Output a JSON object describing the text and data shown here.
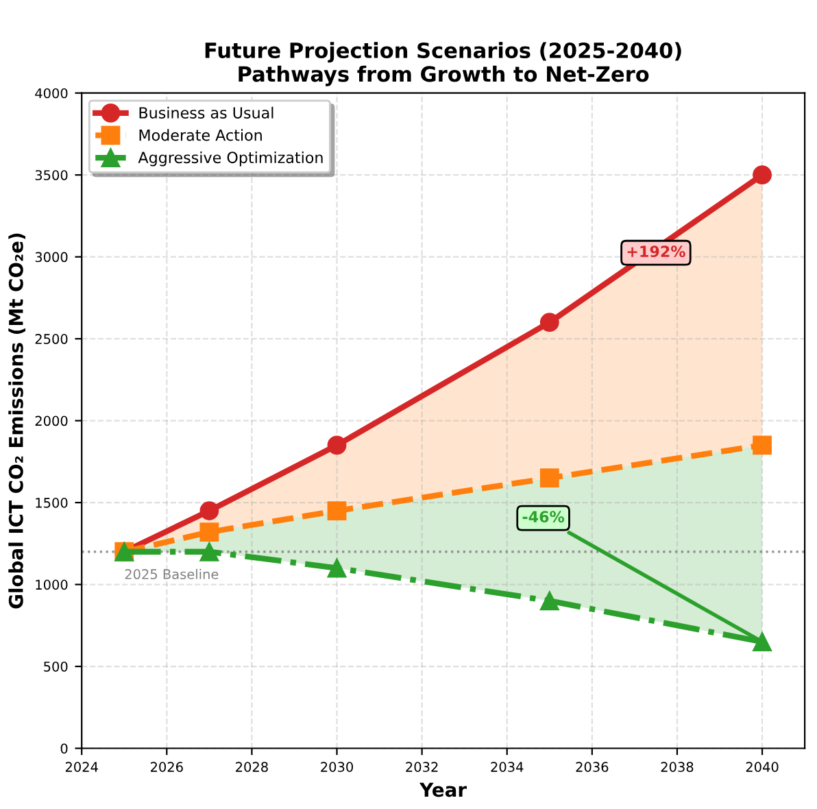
{
  "chart_data": {
    "type": "line",
    "title": "Future Projection Scenarios (2025-2040)",
    "subtitle": "Pathways from Growth to Net-Zero",
    "xlabel": "Year",
    "ylabel": "Global ICT CO₂ Emissions (Mt CO₂e)",
    "x": [
      2025,
      2027,
      2030,
      2035,
      2040
    ],
    "series": [
      {
        "name": "Business as Usual",
        "color": "#d62728",
        "marker": "circle",
        "line_style": "solid",
        "values": [
          1200,
          1450,
          1850,
          2600,
          3500
        ]
      },
      {
        "name": "Moderate Action",
        "color": "#ff7f0e",
        "marker": "square",
        "line_style": "dashed",
        "values": [
          1200,
          1320,
          1450,
          1650,
          1850
        ],
        "lower": [
          1200,
          1320,
          1450,
          1650,
          1850
        ],
        "upper": [
          1200,
          1450,
          1850,
          2600,
          3500
        ]
      },
      {
        "name": "Aggressive Optimization",
        "color": "#2ca02c",
        "marker": "triangle",
        "line_style": "dashdot",
        "values": [
          1200,
          1200,
          1100,
          900,
          650
        ],
        "lower": [
          1200,
          1200,
          1100,
          900,
          650
        ],
        "upper": [
          1200,
          1320,
          1450,
          1650,
          1850
        ]
      }
    ],
    "ref_lines": [
      {
        "axis": "y",
        "value": 1200,
        "label": "2025 Baseline",
        "color": "#808080",
        "line_style": "dotted"
      }
    ],
    "annotations": [
      {
        "text": "+192%",
        "x": 2037.5,
        "y": 3025
      },
      {
        "text": "-46%",
        "x": 2040,
        "y": 650
      }
    ],
    "xlim": [
      2024,
      2041
    ],
    "xticks": [
      2024,
      2026,
      2028,
      2030,
      2032,
      2034,
      2036,
      2038,
      2040
    ],
    "ylim": [
      0,
      4000
    ],
    "yticks": [
      0,
      500,
      1000,
      1500,
      2000,
      2500,
      3000,
      3500,
      4000
    ],
    "grid": true,
    "legend": "top left"
  }
}
